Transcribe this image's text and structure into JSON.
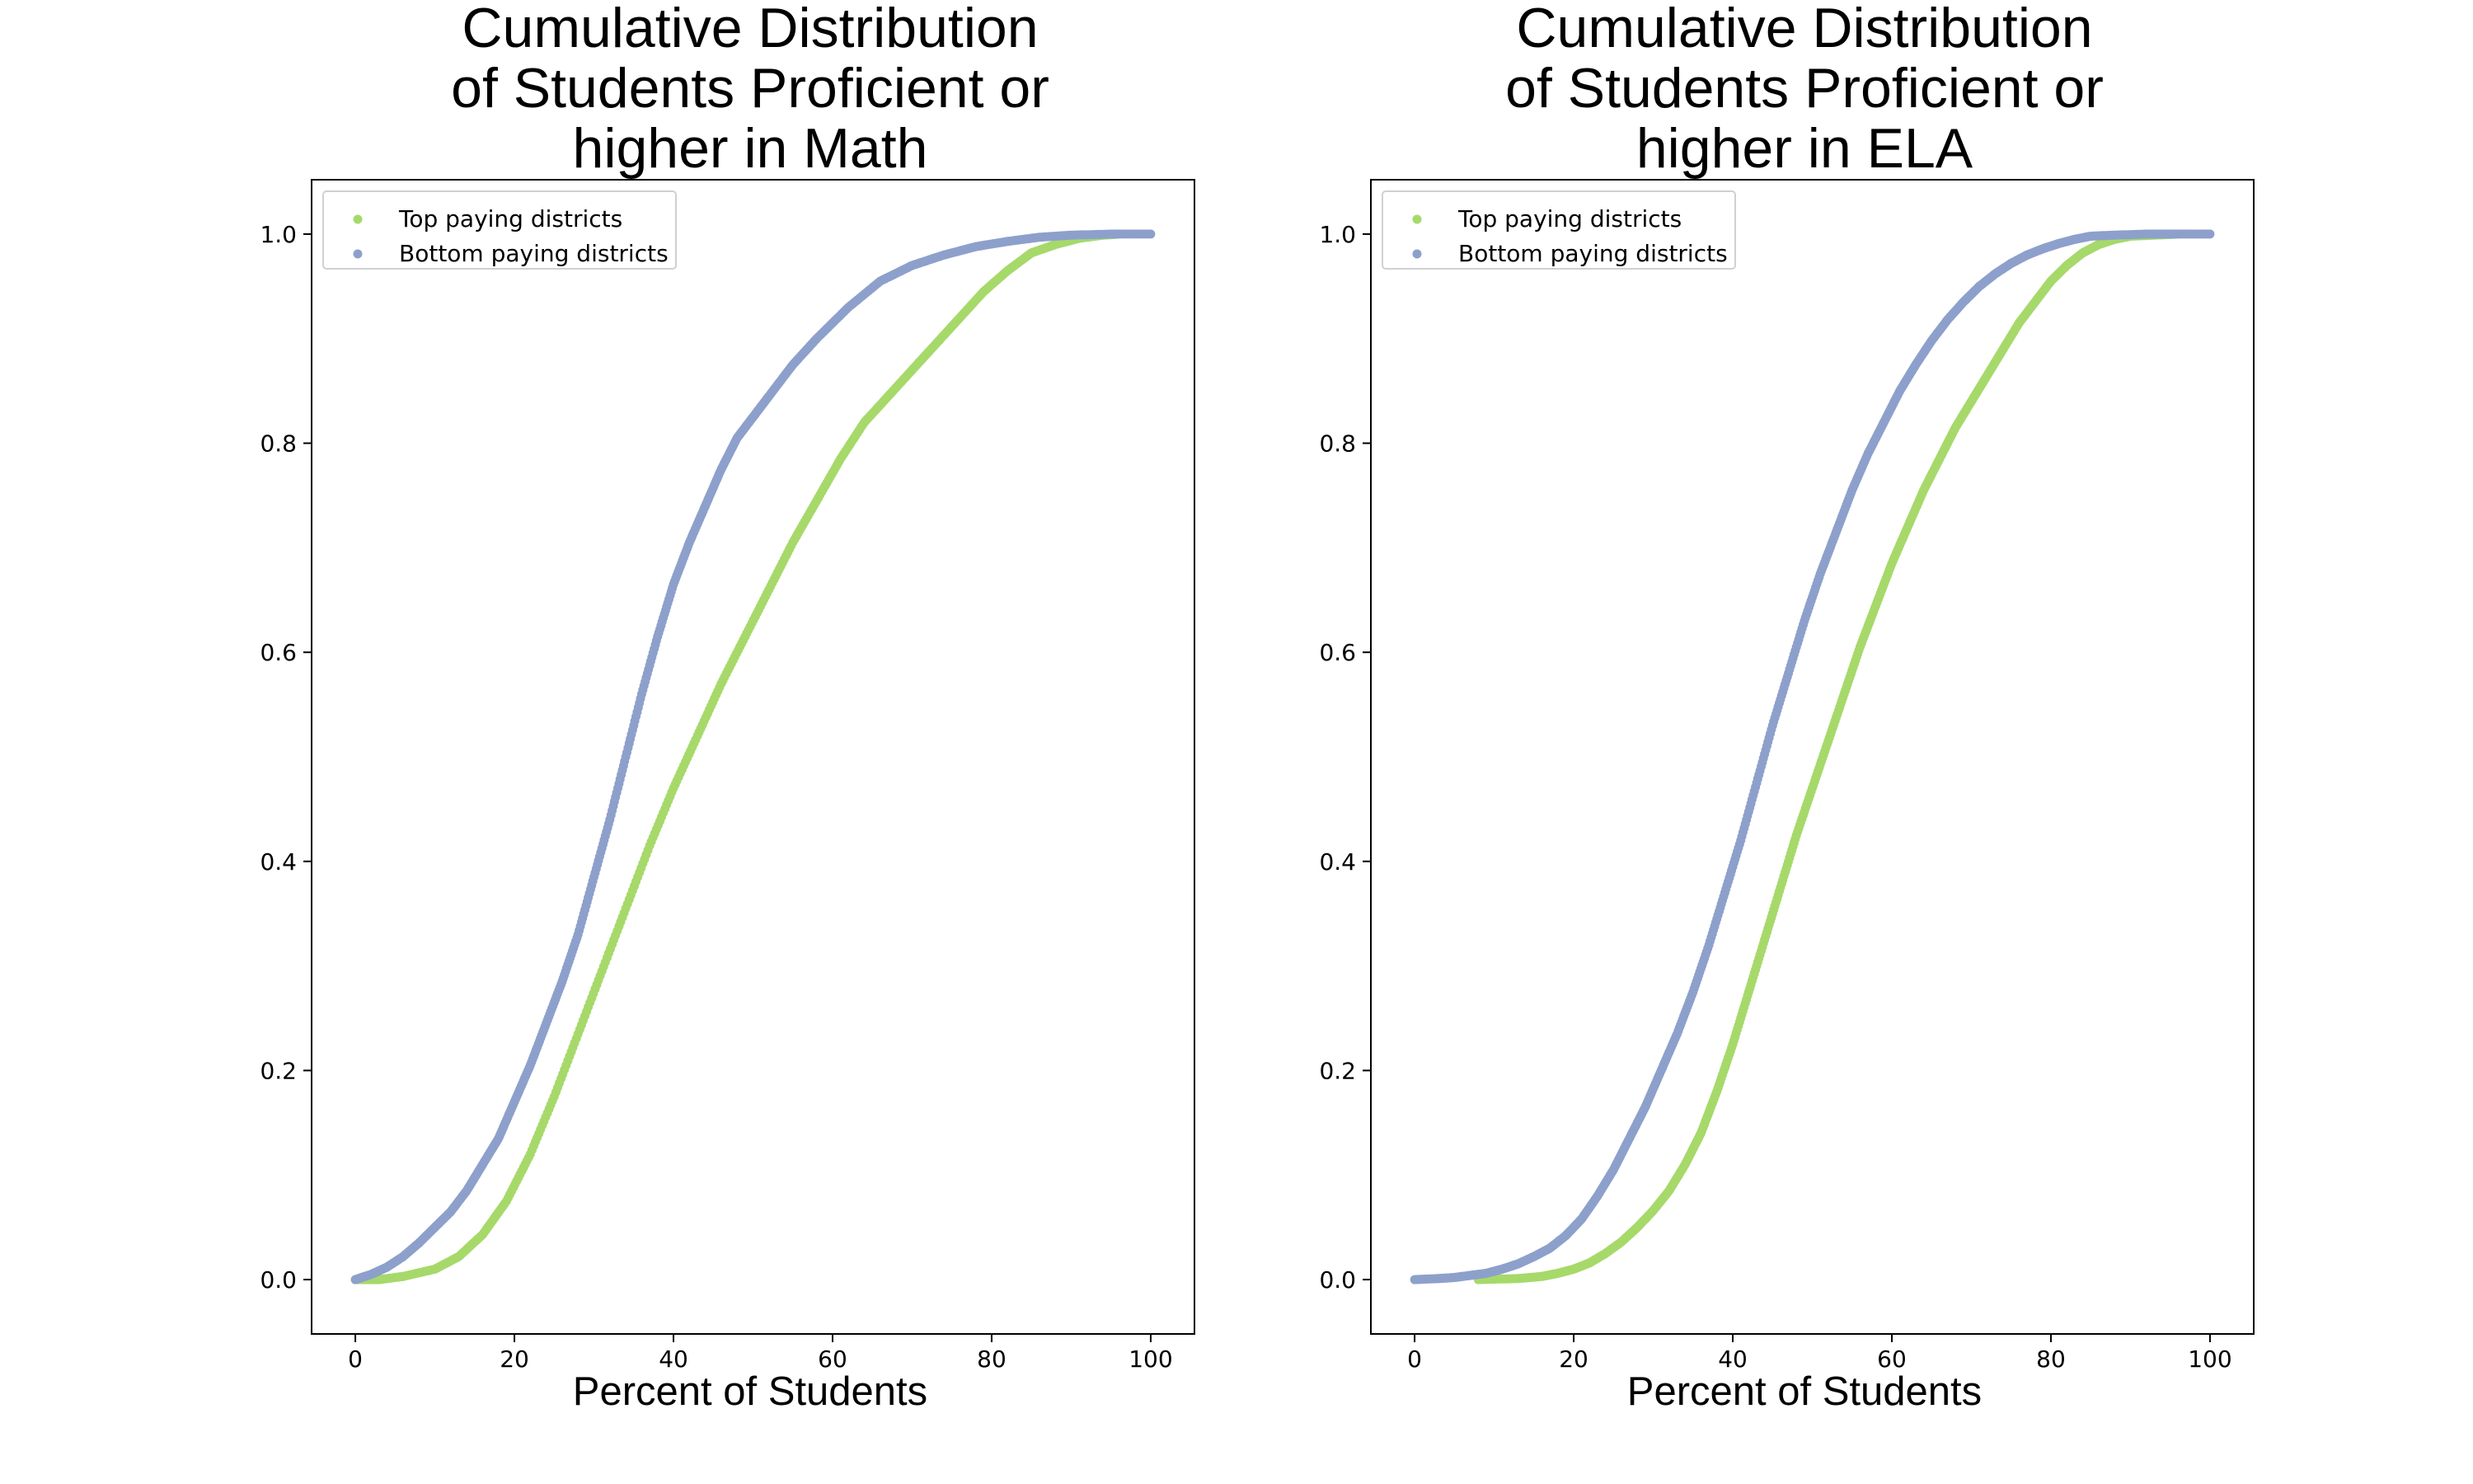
{
  "colors": {
    "top": "#a6d96a",
    "bottom": "#8da0cb"
  },
  "chart_data": [
    {
      "type": "scatter",
      "title": "Cumulative Distribution of Students Proficient or higher in Math",
      "title_lines": [
        "Cumulative Distribution",
        "of Students Proficient or",
        "higher in Math"
      ],
      "xlabel": "Percent of Students",
      "ylabel": "",
      "xlim": [
        -5.5,
        105.5
      ],
      "ylim": [
        -0.052,
        1.052
      ],
      "xticks": [
        "0",
        "20",
        "40",
        "60",
        "80",
        "100"
      ],
      "yticks": [
        "0.0",
        "0.2",
        "0.4",
        "0.6",
        "0.8",
        "1.0"
      ],
      "grid": false,
      "legend": "top-left",
      "series": [
        {
          "name": "Top paying districts",
          "color": "#a6d96a",
          "x": [
            0,
            3,
            6,
            10,
            13,
            16,
            19,
            22,
            25,
            28,
            31,
            34,
            37,
            40,
            43,
            46,
            49,
            52,
            55,
            58,
            61,
            64,
            67,
            70,
            73,
            76,
            79,
            82,
            85,
            88,
            91,
            94,
            96
          ],
          "y": [
            0.0,
            0.0,
            0.003,
            0.01,
            0.022,
            0.043,
            0.075,
            0.12,
            0.175,
            0.235,
            0.295,
            0.355,
            0.415,
            0.47,
            0.52,
            0.57,
            0.615,
            0.66,
            0.705,
            0.745,
            0.785,
            0.82,
            0.845,
            0.87,
            0.895,
            0.92,
            0.945,
            0.965,
            0.982,
            0.99,
            0.996,
            0.999,
            1.0
          ]
        },
        {
          "name": "Bottom paying districts",
          "color": "#8da0cb",
          "x": [
            0,
            2,
            4,
            6,
            8,
            10,
            12,
            14,
            16,
            18,
            20,
            22,
            24,
            26,
            28,
            30,
            32,
            34,
            36,
            38,
            40,
            42,
            44,
            46,
            48,
            50,
            52,
            55,
            58,
            62,
            66,
            70,
            74,
            78,
            82,
            86,
            90,
            95,
            100
          ],
          "y": [
            0.0,
            0.005,
            0.012,
            0.022,
            0.035,
            0.05,
            0.065,
            0.085,
            0.11,
            0.135,
            0.17,
            0.205,
            0.245,
            0.285,
            0.33,
            0.385,
            0.44,
            0.5,
            0.56,
            0.615,
            0.665,
            0.705,
            0.74,
            0.775,
            0.805,
            0.825,
            0.845,
            0.875,
            0.9,
            0.93,
            0.955,
            0.97,
            0.98,
            0.988,
            0.993,
            0.997,
            0.999,
            1.0,
            1.0
          ]
        }
      ]
    },
    {
      "type": "scatter",
      "title": "Cumulative Distribution of Students Proficient or higher in ELA",
      "title_lines": [
        "Cumulative Distribution",
        "of Students Proficient or",
        "higher in ELA"
      ],
      "xlabel": "Percent of Students",
      "ylabel": "",
      "xlim": [
        -5.5,
        105.5
      ],
      "ylim": [
        -0.052,
        1.052
      ],
      "xticks": [
        "0",
        "20",
        "40",
        "60",
        "80",
        "100"
      ],
      "yticks": [
        "0.0",
        "0.2",
        "0.4",
        "0.6",
        "0.8",
        "1.0"
      ],
      "grid": false,
      "legend": "top-left",
      "series": [
        {
          "name": "Top paying districts",
          "color": "#a6d96a",
          "x": [
            8,
            13,
            16,
            18,
            20,
            22,
            24,
            26,
            28,
            30,
            32,
            34,
            36,
            38,
            40,
            42,
            44,
            46,
            48,
            50,
            52,
            54,
            56,
            58,
            60,
            62,
            64,
            66,
            68,
            70,
            72,
            74,
            76,
            78,
            80,
            82,
            84,
            86,
            88,
            90,
            93,
            96
          ],
          "y": [
            0.0,
            0.001,
            0.003,
            0.006,
            0.01,
            0.016,
            0.025,
            0.036,
            0.05,
            0.066,
            0.085,
            0.11,
            0.14,
            0.18,
            0.225,
            0.275,
            0.325,
            0.375,
            0.425,
            0.47,
            0.515,
            0.56,
            0.605,
            0.645,
            0.685,
            0.72,
            0.755,
            0.785,
            0.815,
            0.84,
            0.865,
            0.89,
            0.915,
            0.935,
            0.955,
            0.97,
            0.982,
            0.99,
            0.995,
            0.998,
            0.999,
            1.0
          ]
        },
        {
          "name": "Bottom paying districts",
          "color": "#8da0cb",
          "x": [
            0,
            3,
            5,
            7,
            9,
            11,
            13,
            15,
            17,
            19,
            21,
            23,
            25,
            27,
            29,
            31,
            33,
            35,
            37,
            39,
            41,
            43,
            45,
            47,
            49,
            51,
            53,
            55,
            57,
            59,
            61,
            63,
            65,
            67,
            69,
            71,
            73,
            75,
            77,
            79,
            81,
            83,
            85,
            88,
            92,
            96,
            100
          ],
          "y": [
            0.0,
            0.001,
            0.002,
            0.004,
            0.006,
            0.01,
            0.015,
            0.022,
            0.03,
            0.042,
            0.058,
            0.08,
            0.105,
            0.135,
            0.165,
            0.2,
            0.235,
            0.275,
            0.32,
            0.37,
            0.42,
            0.475,
            0.53,
            0.58,
            0.63,
            0.675,
            0.715,
            0.755,
            0.79,
            0.82,
            0.85,
            0.875,
            0.898,
            0.918,
            0.935,
            0.95,
            0.962,
            0.972,
            0.98,
            0.986,
            0.991,
            0.995,
            0.998,
            0.999,
            1.0,
            1.0,
            1.0
          ]
        }
      ]
    }
  ]
}
